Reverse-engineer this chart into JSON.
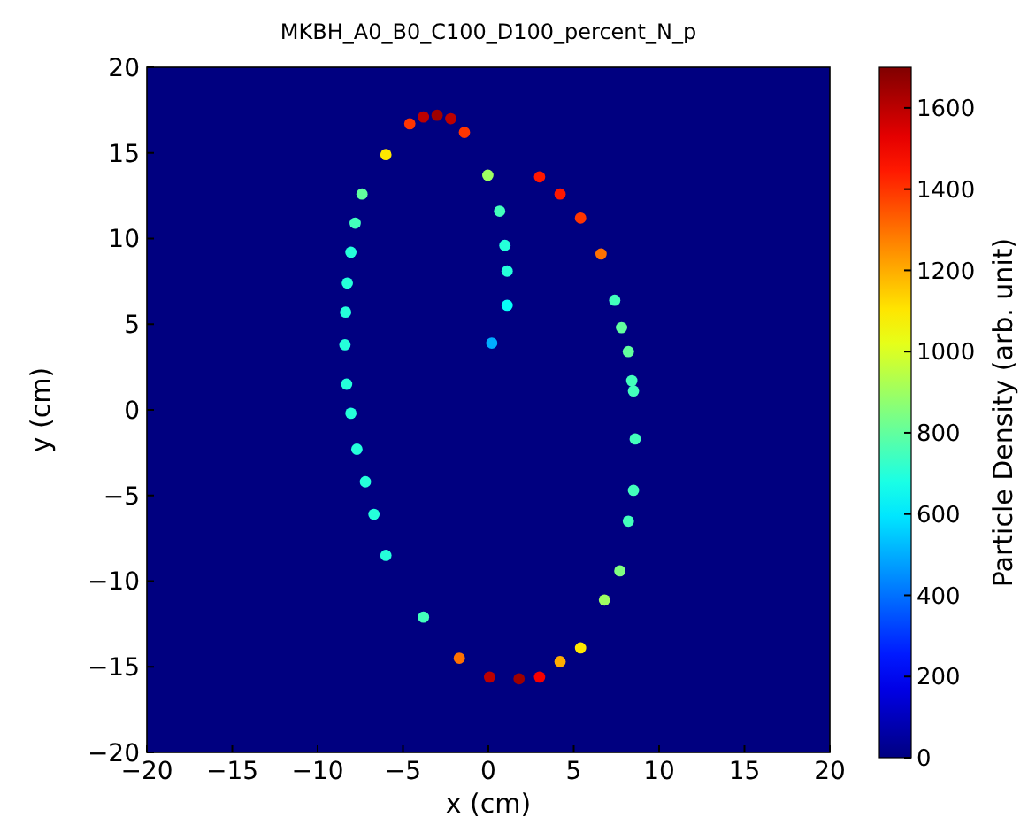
{
  "chart_data": {
    "type": "scatter",
    "title": "MKBH_A0_B0_C100_D100_percent_N_p",
    "xlabel": "x (cm)",
    "ylabel": "y (cm)",
    "clabel": "Particle Density (arb. unit)",
    "marker": "circle",
    "grid": false,
    "x": [
      -4.6,
      -3.8,
      -3.0,
      -2.2,
      -1.4,
      -6.0,
      -7.4,
      -7.8,
      -8.05,
      -8.26,
      -8.36,
      -8.4,
      -8.3,
      -8.05,
      -7.7,
      -7.2,
      -6.7,
      -6.0,
      -3.8,
      -1.7,
      0.07,
      1.8,
      3.0,
      4.2,
      5.4,
      6.8,
      7.7,
      8.2,
      8.5,
      8.6,
      8.5,
      8.4,
      8.2,
      7.8,
      7.4,
      6.6,
      5.4,
      4.2,
      3.0,
      0.2,
      -0.03,
      0.66,
      0.97,
      1.1,
      1.1
    ],
    "values": [
      16.7,
      17.1,
      17.2,
      17.0,
      16.2,
      14.9,
      12.6,
      10.9,
      9.2,
      7.4,
      5.7,
      3.8,
      1.5,
      -0.2,
      -2.3,
      -4.2,
      -6.1,
      -8.5,
      -12.1,
      -14.5,
      -15.6,
      -15.7,
      -15.6,
      -14.7,
      -13.9,
      -11.1,
      -9.4,
      -6.5,
      -4.7,
      -1.7,
      1.1,
      1.7,
      3.4,
      4.8,
      6.4,
      9.1,
      11.2,
      12.6,
      13.6,
      3.9,
      13.7,
      11.6,
      9.6,
      8.1,
      6.1
    ],
    "cvalues": [
      1400,
      1600,
      1650,
      1600,
      1400,
      1100,
      800,
      750,
      700,
      700,
      700,
      700,
      700,
      700,
      700,
      700,
      700,
      700,
      750,
      1300,
      1600,
      1650,
      1500,
      1200,
      1100,
      900,
      850,
      750,
      750,
      750,
      750,
      750,
      800,
      800,
      750,
      1300,
      1400,
      1450,
      1450,
      500,
      900,
      750,
      700,
      700,
      650
    ],
    "xlim": [
      -20,
      20
    ],
    "xticks": [
      {
        "value": -20,
        "label": "−20"
      },
      {
        "value": -15,
        "label": "−15"
      },
      {
        "value": -10,
        "label": "−10"
      },
      {
        "value": -5,
        "label": "−5"
      },
      0,
      5,
      10,
      15,
      20
    ],
    "ylim": [
      -20,
      20
    ],
    "yticks": [
      {
        "value": -20,
        "label": "−20"
      },
      {
        "value": -15,
        "label": "−15"
      },
      {
        "value": -10,
        "label": "−10"
      },
      {
        "value": -5,
        "label": "−5"
      },
      0,
      5,
      10,
      15,
      20
    ],
    "clim": [
      0,
      1700
    ],
    "cticks": [
      0,
      200,
      400,
      600,
      800,
      1000,
      1200,
      1400,
      1600
    ]
  }
}
